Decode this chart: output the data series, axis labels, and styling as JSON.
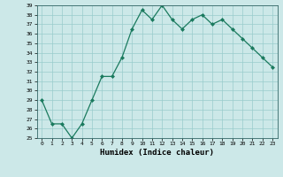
{
  "x": [
    0,
    1,
    2,
    3,
    4,
    5,
    6,
    7,
    8,
    9,
    10,
    11,
    12,
    13,
    14,
    15,
    16,
    17,
    18,
    19,
    20,
    21,
    22,
    23
  ],
  "y": [
    29,
    26.5,
    26.5,
    25,
    26.5,
    29,
    31.5,
    31.5,
    33.5,
    36.5,
    38.5,
    37.5,
    39,
    37.5,
    36.5,
    37.5,
    38,
    37,
    37.5,
    36.5,
    35.5,
    34.5,
    33.5,
    32.5
  ],
  "ylim": [
    25,
    39
  ],
  "yticks": [
    25,
    26,
    27,
    28,
    29,
    30,
    31,
    32,
    33,
    34,
    35,
    36,
    37,
    38,
    39
  ],
  "xticks": [
    0,
    1,
    2,
    3,
    4,
    5,
    6,
    7,
    8,
    9,
    10,
    11,
    12,
    13,
    14,
    15,
    16,
    17,
    18,
    19,
    20,
    21,
    22,
    23
  ],
  "xlabel": "Humidex (Indice chaleur)",
  "line_color": "#1a7a5e",
  "marker": "D",
  "marker_size": 2.0,
  "bg_color": "#cce8e8",
  "grid_color": "#99cccc",
  "fig_bg": "#cce8e8"
}
